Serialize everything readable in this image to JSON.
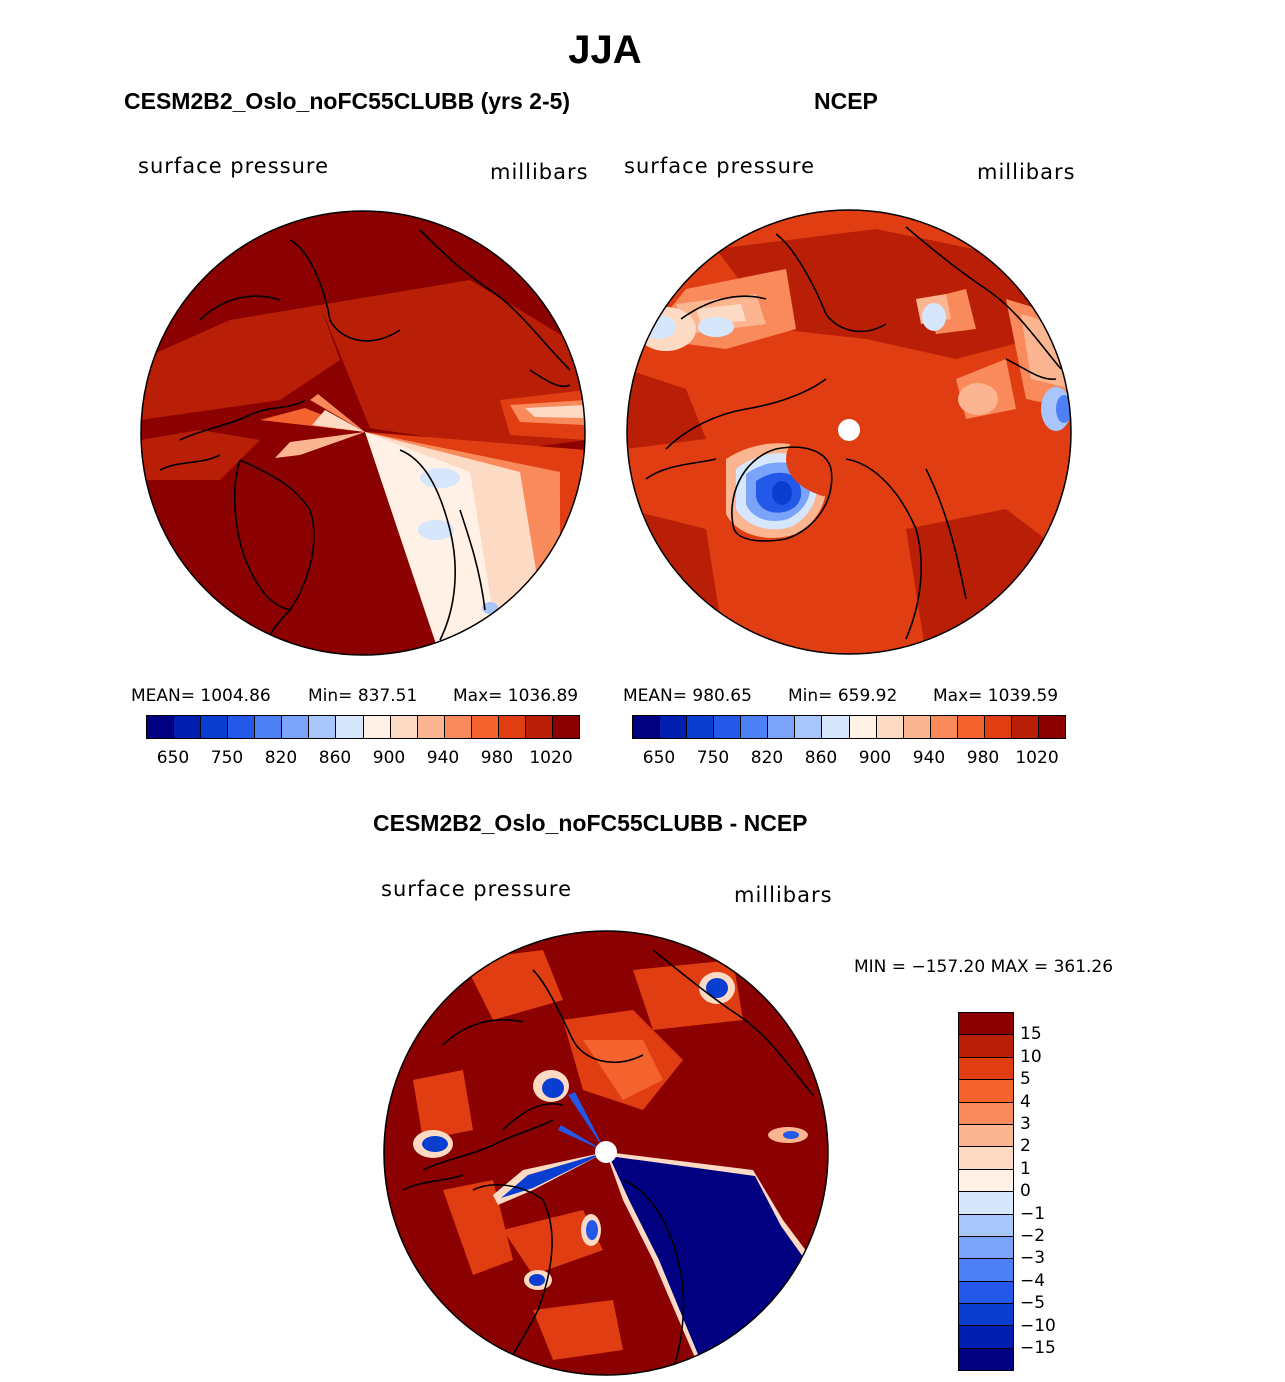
{
  "season": "JJA",
  "panels": {
    "model": {
      "title": "CESM2B2_Oslo_noFC55CLUBB (yrs 2-5)",
      "variable": "surface pressure",
      "units": "millibars",
      "stats": {
        "mean": "MEAN= 1004.86",
        "min": "Min= 837.51",
        "max": "Max= 1036.89"
      }
    },
    "obs": {
      "title": "NCEP",
      "variable": "surface pressure",
      "units": "millibars",
      "stats": {
        "mean": "MEAN= 980.65",
        "min": "Min= 659.92",
        "max": "Max= 1039.59"
      }
    },
    "diff": {
      "title": "CESM2B2_Oslo_noFC55CLUBB - NCEP",
      "variable": "surface pressure",
      "units": "millibars",
      "minmax": "MIN = −157.20 MAX = 361.26"
    }
  },
  "colorbar_abs": {
    "colors": [
      "#000080",
      "#001fb0",
      "#0a3ed1",
      "#2358e8",
      "#4d7ff5",
      "#7ba3fa",
      "#a9c6fc",
      "#d5e6fd",
      "#fff1e6",
      "#fddac4",
      "#fbb590",
      "#f98a5c",
      "#f4622e",
      "#e03e12",
      "#b91f06",
      "#8b0000"
    ],
    "tick_labels": [
      "650",
      "750",
      "820",
      "860",
      "900",
      "940",
      "980",
      "1020"
    ]
  },
  "colorbar_diff": {
    "colors": [
      "#8b0000",
      "#b91f06",
      "#e03e12",
      "#f4622e",
      "#f98a5c",
      "#fbb590",
      "#fddac4",
      "#fff1e6",
      "#d5e6fd",
      "#a9c6fc",
      "#7ba3fa",
      "#4d7ff5",
      "#2358e8",
      "#0a3ed1",
      "#001fb0",
      "#000080"
    ],
    "tick_labels": [
      "15",
      "10",
      "5",
      "4",
      "3",
      "2",
      "1",
      "0",
      "−1",
      "−2",
      "−3",
      "−4",
      "−5",
      "−10",
      "−15"
    ]
  }
}
